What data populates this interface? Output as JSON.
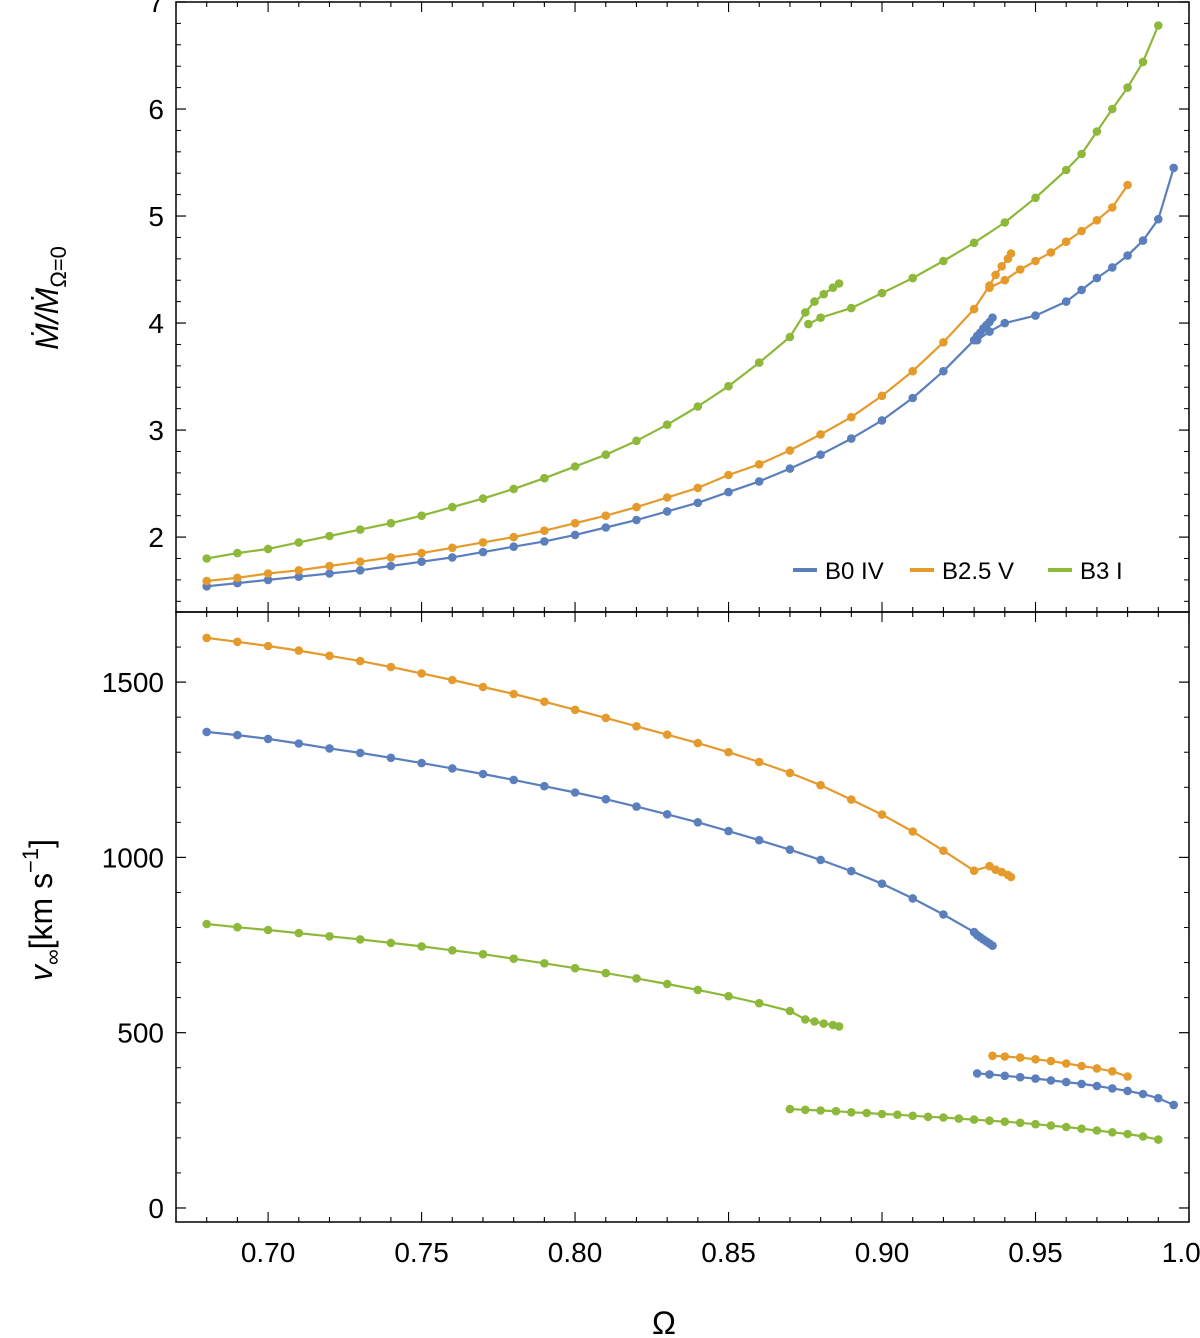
{
  "chart_data": [
    {
      "type": "line",
      "panel": "top",
      "title": "",
      "xlabel": "Ω",
      "ylabel_parts": {
        "main": "Ṁ/Ṁ",
        "sub": "Ω=0"
      },
      "xlim": [
        0.67,
        1.0
      ],
      "ylim": [
        1.3,
        7.0
      ],
      "yticks": [
        {
          "value": 2,
          "label": "2"
        },
        {
          "value": 3,
          "label": "3"
        },
        {
          "value": 4,
          "label": "4"
        },
        {
          "value": 5,
          "label": "5"
        },
        {
          "value": 6,
          "label": "6"
        },
        {
          "value": 7,
          "label": "7"
        }
      ],
      "legend": {
        "placement": "bottom-right",
        "items": [
          "B0 IV",
          "B2.5 V",
          "B3 I"
        ]
      },
      "series": [
        {
          "name": "B0 IV",
          "color": "#5b7fbd",
          "segments": [
            {
              "x": [
                0.68,
                0.69,
                0.7,
                0.71,
                0.72,
                0.73,
                0.74,
                0.75,
                0.76,
                0.77,
                0.78,
                0.79,
                0.8,
                0.81,
                0.82,
                0.83,
                0.84,
                0.85,
                0.86,
                0.87,
                0.88,
                0.89,
                0.9,
                0.91,
                0.92,
                0.93,
                0.931,
                0.932,
                0.933,
                0.934,
                0.935,
                0.936
              ],
              "y": [
                1.54,
                1.57,
                1.6,
                1.63,
                1.66,
                1.69,
                1.73,
                1.77,
                1.81,
                1.86,
                1.91,
                1.96,
                2.02,
                2.09,
                2.16,
                2.24,
                2.32,
                2.42,
                2.52,
                2.64,
                2.77,
                2.92,
                3.09,
                3.3,
                3.55,
                3.84,
                3.88,
                3.91,
                3.95,
                3.98,
                4.01,
                4.05
              ]
            },
            {
              "x": [
                0.931,
                0.935,
                0.94,
                0.95,
                0.96,
                0.965,
                0.97,
                0.975,
                0.98,
                0.985,
                0.99,
                0.995
              ],
              "y": [
                3.84,
                3.92,
                4.0,
                4.07,
                4.2,
                4.31,
                4.42,
                4.52,
                4.63,
                4.77,
                4.97,
                5.45
              ]
            }
          ]
        },
        {
          "name": "B2.5 V",
          "color": "#e59a2c",
          "segments": [
            {
              "x": [
                0.68,
                0.69,
                0.7,
                0.71,
                0.72,
                0.73,
                0.74,
                0.75,
                0.76,
                0.77,
                0.78,
                0.79,
                0.8,
                0.81,
                0.82,
                0.83,
                0.84,
                0.85,
                0.86,
                0.87,
                0.88,
                0.89,
                0.9,
                0.91,
                0.92,
                0.93,
                0.935,
                0.937,
                0.939,
                0.941,
                0.942
              ],
              "y": [
                1.59,
                1.62,
                1.66,
                1.69,
                1.73,
                1.77,
                1.81,
                1.85,
                1.9,
                1.95,
                2.0,
                2.06,
                2.13,
                2.2,
                2.28,
                2.37,
                2.46,
                2.58,
                2.68,
                2.81,
                2.96,
                3.12,
                3.32,
                3.55,
                3.82,
                4.13,
                4.35,
                4.45,
                4.53,
                4.6,
                4.65
              ]
            },
            {
              "x": [
                0.935,
                0.94,
                0.945,
                0.95,
                0.955,
                0.96,
                0.965,
                0.97,
                0.975,
                0.98
              ],
              "y": [
                4.33,
                4.4,
                4.5,
                4.58,
                4.66,
                4.76,
                4.86,
                4.96,
                5.08,
                5.29
              ]
            }
          ]
        },
        {
          "name": "B3 I",
          "color": "#8db83a",
          "segments": [
            {
              "x": [
                0.68,
                0.69,
                0.7,
                0.71,
                0.72,
                0.73,
                0.74,
                0.75,
                0.76,
                0.77,
                0.78,
                0.79,
                0.8,
                0.81,
                0.82,
                0.83,
                0.84,
                0.85,
                0.86,
                0.87,
                0.875,
                0.878,
                0.881,
                0.884,
                0.886
              ],
              "y": [
                1.8,
                1.85,
                1.89,
                1.95,
                2.01,
                2.07,
                2.13,
                2.2,
                2.28,
                2.36,
                2.45,
                2.55,
                2.66,
                2.77,
                2.9,
                3.05,
                3.22,
                3.41,
                3.63,
                3.87,
                4.1,
                4.2,
                4.27,
                4.33,
                4.37
              ]
            },
            {
              "x": [
                0.876,
                0.88,
                0.89,
                0.9,
                0.91,
                0.92,
                0.93,
                0.94,
                0.95,
                0.96,
                0.965,
                0.97,
                0.975,
                0.98,
                0.985,
                0.99
              ],
              "y": [
                3.99,
                4.05,
                4.14,
                4.28,
                4.42,
                4.58,
                4.75,
                4.94,
                5.17,
                5.43,
                5.58,
                5.79,
                6.0,
                6.2,
                6.44,
                6.78
              ]
            }
          ]
        }
      ]
    },
    {
      "type": "line",
      "panel": "bottom",
      "title": "",
      "xlabel": "Ω",
      "ylabel_parts": {
        "main": "v",
        "sub": "∞",
        "rest": "[km s",
        "sup": "−1",
        "close": "]"
      },
      "xlim": [
        0.67,
        1.0
      ],
      "ylim": [
        -40,
        1700
      ],
      "yticks": [
        {
          "value": 0,
          "label": "0"
        },
        {
          "value": 500,
          "label": "500"
        },
        {
          "value": 1000,
          "label": "1000"
        },
        {
          "value": 1500,
          "label": "1500"
        }
      ],
      "xticks": [
        {
          "value": 0.7,
          "label": "0.70"
        },
        {
          "value": 0.75,
          "label": "0.75"
        },
        {
          "value": 0.8,
          "label": "0.80"
        },
        {
          "value": 0.85,
          "label": "0.85"
        },
        {
          "value": 0.9,
          "label": "0.90"
        },
        {
          "value": 0.95,
          "label": "0.95"
        },
        {
          "value": 1.0,
          "label": "1.00"
        }
      ],
      "series": [
        {
          "name": "B0 IV",
          "color": "#5b7fbd",
          "segments": [
            {
              "x": [
                0.68,
                0.69,
                0.7,
                0.71,
                0.72,
                0.73,
                0.74,
                0.75,
                0.76,
                0.77,
                0.78,
                0.79,
                0.8,
                0.81,
                0.82,
                0.83,
                0.84,
                0.85,
                0.86,
                0.87,
                0.88,
                0.89,
                0.9,
                0.91,
                0.92,
                0.93,
                0.931,
                0.932,
                0.933,
                0.934,
                0.935,
                0.936
              ],
              "y": [
                1358,
                1349,
                1338,
                1325,
                1311,
                1298,
                1284,
                1269,
                1254,
                1238,
                1221,
                1203,
                1185,
                1166,
                1145,
                1123,
                1100,
                1075,
                1049,
                1022,
                993,
                961,
                925,
                883,
                837,
                787,
                778,
                772,
                766,
                760,
                754,
                748
              ]
            },
            {
              "x": [
                0.931,
                0.935,
                0.94,
                0.945,
                0.95,
                0.955,
                0.96,
                0.965,
                0.97,
                0.975,
                0.98,
                0.985,
                0.99,
                0.995
              ],
              "y": [
                384,
                381,
                377,
                373,
                369,
                364,
                359,
                354,
                348,
                341,
                334,
                325,
                313,
                294
              ]
            }
          ]
        },
        {
          "name": "B2.5 V",
          "color": "#e59a2c",
          "segments": [
            {
              "x": [
                0.68,
                0.69,
                0.7,
                0.71,
                0.72,
                0.73,
                0.74,
                0.75,
                0.76,
                0.77,
                0.78,
                0.79,
                0.8,
                0.81,
                0.82,
                0.83,
                0.84,
                0.85,
                0.86,
                0.87,
                0.88,
                0.89,
                0.9,
                0.91,
                0.92,
                0.93,
                0.935,
                0.937,
                0.939,
                0.941,
                0.942
              ],
              "y": [
                1626,
                1615,
                1603,
                1590,
                1575,
                1560,
                1543,
                1525,
                1506,
                1486,
                1466,
                1444,
                1421,
                1398,
                1374,
                1350,
                1326,
                1300,
                1272,
                1241,
                1206,
                1165,
                1122,
                1074,
                1019,
                962,
                975,
                965,
                958,
                950,
                944
              ]
            },
            {
              "x": [
                0.936,
                0.94,
                0.945,
                0.95,
                0.955,
                0.96,
                0.965,
                0.97,
                0.975,
                0.98
              ],
              "y": [
                434,
                432,
                429,
                424,
                419,
                412,
                405,
                398,
                390,
                375
              ]
            }
          ]
        },
        {
          "name": "B3 I",
          "color": "#8db83a",
          "segments": [
            {
              "x": [
                0.68,
                0.69,
                0.7,
                0.71,
                0.72,
                0.73,
                0.74,
                0.75,
                0.76,
                0.77,
                0.78,
                0.79,
                0.8,
                0.81,
                0.82,
                0.83,
                0.84,
                0.85,
                0.86,
                0.87,
                0.875,
                0.878,
                0.881,
                0.884,
                0.886
              ],
              "y": [
                810,
                801,
                793,
                784,
                775,
                766,
                756,
                746,
                735,
                724,
                711,
                698,
                684,
                670,
                655,
                639,
                622,
                604,
                584,
                562,
                538,
                532,
                526,
                522,
                518
              ]
            },
            {
              "x": [
                0.87,
                0.875,
                0.88,
                0.885,
                0.89,
                0.895,
                0.9,
                0.905,
                0.91,
                0.915,
                0.92,
                0.925,
                0.93,
                0.935,
                0.94,
                0.945,
                0.95,
                0.955,
                0.96,
                0.965,
                0.97,
                0.975,
                0.98,
                0.985,
                0.99
              ],
              "y": [
                282,
                280,
                278,
                276,
                273,
                271,
                268,
                266,
                263,
                260,
                258,
                255,
                252,
                249,
                246,
                243,
                239,
                235,
                231,
                226,
                221,
                216,
                211,
                204,
                195
              ]
            }
          ]
        }
      ]
    }
  ]
}
